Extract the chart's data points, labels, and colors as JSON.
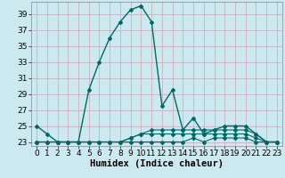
{
  "title": "",
  "xlabel": "Humidex (Indice chaleur)",
  "ylabel": "",
  "background_color": "#cce9f0",
  "grid_color_major": "#b8d5db",
  "grid_color_minor": "#d4edf2",
  "line_color": "#006868",
  "x": [
    0,
    1,
    2,
    3,
    4,
    5,
    6,
    7,
    8,
    9,
    10,
    11,
    12,
    13,
    14,
    15,
    16,
    17,
    18,
    19,
    20,
    21,
    22,
    23
  ],
  "y_main": [
    25,
    24,
    23,
    23,
    23,
    29.5,
    33,
    36,
    38,
    39.5,
    40,
    38,
    27.5,
    29.5,
    24.5,
    26,
    24,
    24.5,
    25,
    25,
    25,
    24,
    23,
    23
  ],
  "y_mid1": [
    23,
    23,
    23,
    23,
    23,
    23,
    23,
    23,
    23,
    23.5,
    24,
    24.5,
    24.5,
    24.5,
    24.5,
    24.5,
    24.5,
    24.5,
    24.5,
    24.5,
    24.5,
    24,
    23,
    23
  ],
  "y_mid2": [
    23,
    23,
    23,
    23,
    23,
    23,
    23,
    23,
    23,
    23.5,
    24,
    24,
    24,
    24,
    24,
    24,
    24,
    24,
    24,
    24,
    24,
    23.5,
    23,
    23
  ],
  "y_low": [
    23,
    23,
    23,
    23,
    23,
    23,
    23,
    23,
    23,
    23,
    23,
    23,
    23,
    23,
    23,
    23.5,
    23,
    23.5,
    23.5,
    23.5,
    23.5,
    23,
    23,
    23
  ],
  "ylim": [
    22.5,
    40.5
  ],
  "yticks": [
    23,
    25,
    27,
    29,
    31,
    33,
    35,
    37,
    39
  ],
  "xlim": [
    -0.5,
    23.5
  ],
  "xticks": [
    0,
    1,
    2,
    3,
    4,
    5,
    6,
    7,
    8,
    9,
    10,
    11,
    12,
    13,
    14,
    15,
    16,
    17,
    18,
    19,
    20,
    21,
    22,
    23
  ],
  "tick_fontsize": 6.5,
  "xlabel_fontsize": 7.5
}
